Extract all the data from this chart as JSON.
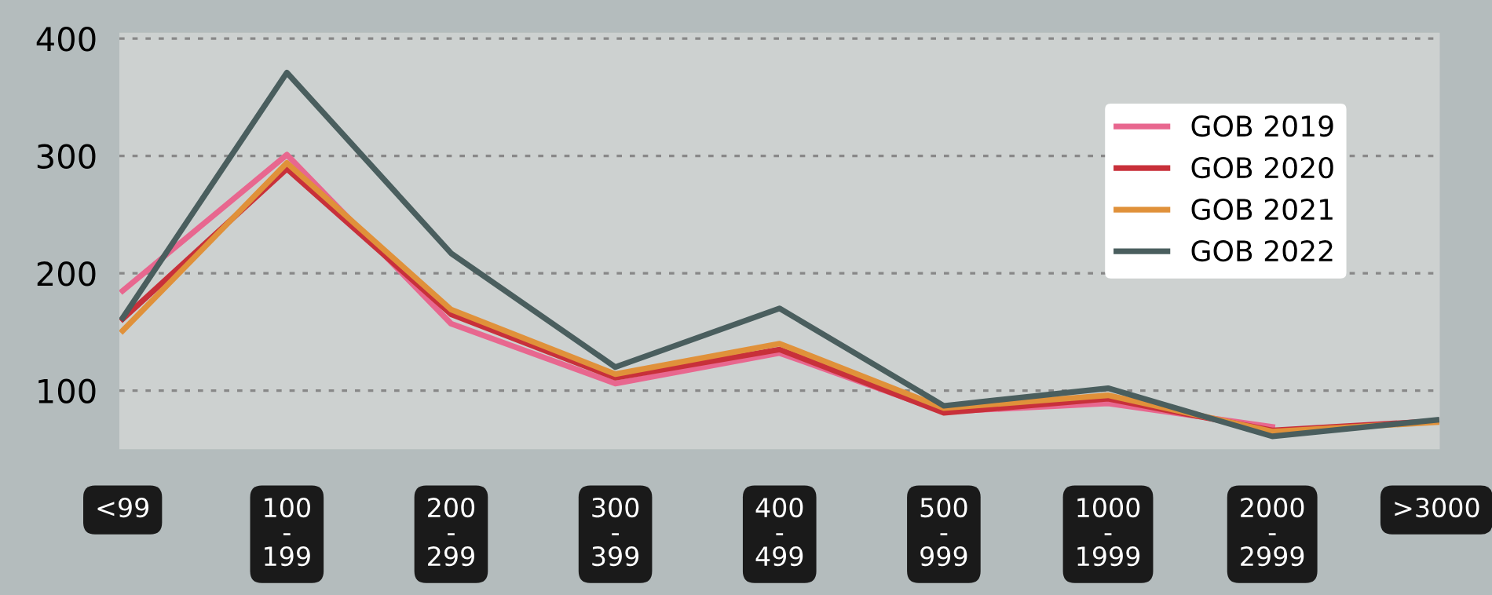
{
  "chart_data": {
    "type": "line",
    "categories": [
      "<99",
      "100\n-\n199",
      "200\n-\n299",
      "300\n-\n399",
      "400\n-\n499",
      "500\n-\n999",
      "1000\n-\n1999",
      "2000\n-\n2999",
      ">3000"
    ],
    "series": [
      {
        "name": "GOB 2019",
        "color": "#e8678f",
        "values": [
          185,
          301,
          157,
          106,
          132,
          82,
          89,
          69,
          null
        ]
      },
      {
        "name": "GOB 2020",
        "color": "#c8303a",
        "values": [
          161,
          289,
          165,
          111,
          135,
          81,
          93,
          66,
          74
        ]
      },
      {
        "name": "GOB 2021",
        "color": "#e0913a",
        "values": [
          151,
          294,
          169,
          114,
          140,
          85,
          96,
          65,
          73
        ]
      },
      {
        "name": "GOB 2022",
        "color": "#4a5e5e",
        "values": [
          162,
          371,
          217,
          120,
          170,
          87,
          102,
          61,
          75
        ]
      }
    ],
    "ylim": [
      50,
      405
    ],
    "yticks": [
      100,
      200,
      300,
      400
    ],
    "grid": "y",
    "legend": "right",
    "marker": "none",
    "line_style": "solid"
  }
}
